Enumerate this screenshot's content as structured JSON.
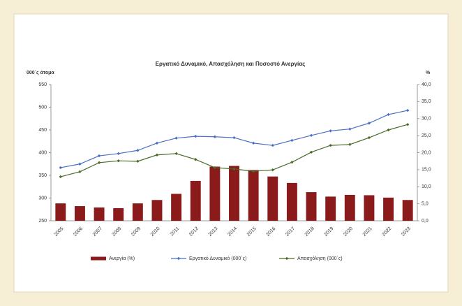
{
  "chart_data": {
    "type": "combo",
    "title": "Εργατικό Δυναμικό, Απασχόληση και Ποσοστό Ανεργίας",
    "y_label": "000΄ς άτομα",
    "y2_label": "%",
    "categories": [
      "2005",
      "2006",
      "2007",
      "2008",
      "2009",
      "2010",
      "2011",
      "2012",
      "2013",
      "2014",
      "2015",
      "2016",
      "2017",
      "2018",
      "2019",
      "2020",
      "2021",
      "2022",
      "2023"
    ],
    "series": [
      {
        "name": "Ανεργία (%)",
        "type": "bar",
        "axis": "y2",
        "color": "#8b1a1a",
        "values": [
          5.1,
          4.3,
          3.9,
          3.7,
          5.1,
          6.1,
          7.9,
          11.7,
          15.9,
          16.1,
          14.9,
          13.0,
          11.1,
          8.4,
          7.1,
          7.6,
          7.5,
          6.8,
          6.1
        ]
      },
      {
        "name": "Εργατικό Δυναμικό (000΄ς)",
        "type": "line",
        "axis": "y",
        "color": "#4a6fc4",
        "values": [
          367,
          375,
          393,
          398,
          405,
          421,
          432,
          436,
          435,
          433,
          421,
          416,
          427,
          438,
          448,
          452,
          465,
          484,
          493
        ]
      },
      {
        "name": "Απασχόληση (000΄ς)",
        "type": "line",
        "axis": "y",
        "color": "#4a6b2a",
        "values": [
          347,
          358,
          378,
          382,
          381,
          395,
          398,
          385,
          367,
          364,
          359,
          362,
          379,
          401,
          416,
          418,
          433,
          450,
          462
        ]
      }
    ],
    "ylim": [
      250,
      550
    ],
    "yticks": [
      250,
      300,
      350,
      400,
      450,
      500,
      550
    ],
    "y2lim": [
      0,
      40
    ],
    "y2ticks": [
      {
        "value": 0,
        "label": "0,0"
      },
      {
        "value": 5,
        "label": "5,0"
      },
      {
        "value": 10,
        "label": "10,0"
      },
      {
        "value": 15,
        "label": "15,0"
      },
      {
        "value": 20,
        "label": "20,0"
      },
      {
        "value": 25,
        "label": "25,0"
      },
      {
        "value": 30,
        "label": "30,0"
      },
      {
        "value": 35,
        "label": "35,0"
      },
      {
        "value": 40,
        "label": "40,0"
      }
    ],
    "grid": false,
    "legend": "bottom"
  }
}
